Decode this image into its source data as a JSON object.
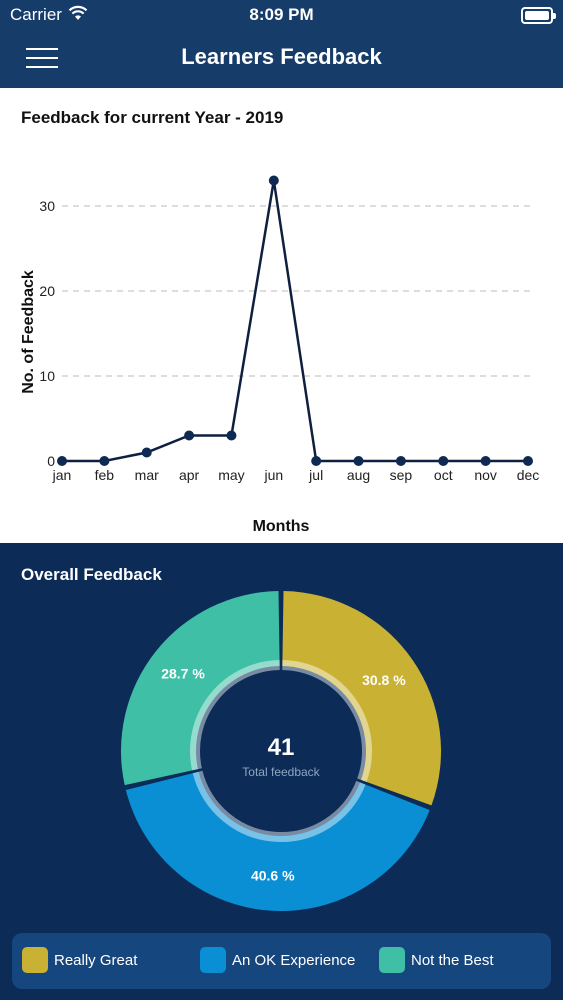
{
  "status_bar": {
    "carrier": "Carrier",
    "time": "8:09 PM"
  },
  "nav": {
    "title": "Learners Feedback",
    "menu_icon": "hamburger-menu-icon"
  },
  "line_section": {
    "title": "Feedback for current Year - 2019"
  },
  "pie_section": {
    "title": "Overall Feedback"
  },
  "colors": {
    "header_bg": "#163c6a",
    "dark_bg": "#0c2c57",
    "line": "#0f1f3f",
    "really_great": "#c9b233",
    "ok_experience": "#0a8fd4",
    "not_the_best": "#3fbfa6",
    "legend_bg": "#16467e"
  },
  "chart_data": [
    {
      "type": "line",
      "xlabel": "Months",
      "ylabel": "No. of Feedback",
      "categories": [
        "jan",
        "feb",
        "mar",
        "apr",
        "may",
        "jun",
        "jul",
        "aug",
        "sep",
        "oct",
        "nov",
        "dec"
      ],
      "values": [
        0,
        0,
        1,
        3,
        3,
        33,
        0,
        0,
        0,
        0,
        0,
        0
      ],
      "yticks": [
        0,
        10,
        20,
        30
      ],
      "ylim": [
        0,
        34
      ],
      "grid": "horizontal dashed"
    },
    {
      "type": "pie",
      "style": "donut",
      "center_value": "41",
      "center_label": "Total feedback",
      "slices": [
        {
          "name": "Really Great",
          "percent": 30.8,
          "label": "30.8 %",
          "color": "#c9b233"
        },
        {
          "name": "An OK Experience",
          "percent": 40.6,
          "label": "40.6 %",
          "color": "#0a8fd4"
        },
        {
          "name": "Not the Best",
          "percent": 28.7,
          "label": "28.7 %",
          "color": "#3fbfa6"
        }
      ],
      "legend": "bottom"
    }
  ]
}
